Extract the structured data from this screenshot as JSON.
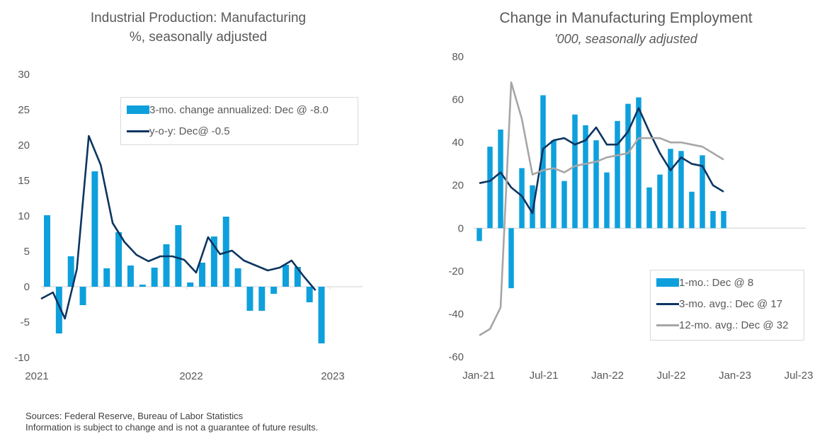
{
  "colors": {
    "bar": "#0ea0dc",
    "dark_line": "#0c3560",
    "gray_line": "#a6a6a6",
    "zero_line": "#d9d9d9"
  },
  "footer": {
    "sources": "Sources: Federal Reserve, Bureau of Labor Statistics",
    "disclaimer": "Information is subject to change and is not a guarantee of future results."
  },
  "chart_data": [
    {
      "type": "bar",
      "title": "Industrial Production: Manufacturing",
      "subtitle": "%, seasonally adjusted",
      "xlabel": "",
      "ylabel": "",
      "ylim": [
        -10,
        30
      ],
      "yticks": [
        "30",
        "25",
        "20",
        "15",
        "10",
        "5",
        "0",
        "-5",
        "-10"
      ],
      "ytick_values": [
        30,
        25,
        20,
        15,
        10,
        5,
        0,
        -5,
        -10
      ],
      "xticks": [
        "2021",
        "2022",
        "2023"
      ],
      "grid": false,
      "legend_position": "top-right",
      "categories": [
        "Jan-21",
        "Feb-21",
        "Mar-21",
        "Apr-21",
        "May-21",
        "Jun-21",
        "Jul-21",
        "Aug-21",
        "Sep-21",
        "Oct-21",
        "Nov-21",
        "Dec-21",
        "Jan-22",
        "Feb-22",
        "Mar-22",
        "Apr-22",
        "May-22",
        "Jun-22",
        "Jul-22",
        "Aug-22",
        "Sep-22",
        "Oct-22",
        "Nov-22",
        "Dec-22"
      ],
      "series": [
        {
          "name": "3-mo. change annualized: Dec @ -8.0",
          "kind": "bar",
          "values": [
            10.1,
            -6.6,
            4.3,
            -2.6,
            16.3,
            2.6,
            7.7,
            3.0,
            0.3,
            2.7,
            6.0,
            8.7,
            0.6,
            3.4,
            7.1,
            9.9,
            2.6,
            -3.4,
            -3.4,
            -1.0,
            3.1,
            2.8,
            -2.2,
            -8.0
          ]
        },
        {
          "name": "y-o-y: Dec@ -0.5",
          "kind": "line",
          "lead_value": -1.7,
          "values": [
            -0.8,
            -4.5,
            2.5,
            21.3,
            17.2,
            9.0,
            6.3,
            4.5,
            3.6,
            4.3,
            4.3,
            3.8,
            2.0,
            7.0,
            4.6,
            5.1,
            3.7,
            3.0,
            2.3,
            2.7,
            3.7,
            1.5,
            -0.5,
            -0.5
          ]
        }
      ]
    },
    {
      "type": "bar",
      "title": "Change in Manufacturing Employment",
      "subtitle": "'000, seasonally adjusted",
      "xlabel": "",
      "ylabel": "",
      "ylim": [
        -60,
        80
      ],
      "yticks": [
        "80",
        "60",
        "40",
        "20",
        "0",
        "-20",
        "-40",
        "-60"
      ],
      "ytick_values": [
        80,
        60,
        40,
        20,
        0,
        -20,
        -40,
        -60
      ],
      "xticks": [
        "Jan-21",
        "Jul-21",
        "Jan-22",
        "Jul-22",
        "Jan-23",
        "Jul-23"
      ],
      "grid": false,
      "legend_position": "bottom-right",
      "categories": [
        "Jan-21",
        "Feb-21",
        "Mar-21",
        "Apr-21",
        "May-21",
        "Jun-21",
        "Jul-21",
        "Aug-21",
        "Sep-21",
        "Oct-21",
        "Nov-21",
        "Dec-21",
        "Jan-22",
        "Feb-22",
        "Mar-22",
        "Apr-22",
        "May-22",
        "Jun-22",
        "Jul-22",
        "Aug-22",
        "Sep-22",
        "Oct-22",
        "Nov-22",
        "Dec-22"
      ],
      "series": [
        {
          "name": "1-mo.: Dec @ 8",
          "kind": "bar",
          "values": [
            -6,
            38,
            46,
            -28,
            28,
            20,
            62,
            41,
            22,
            53,
            48,
            41,
            26,
            50,
            58,
            61,
            19,
            25,
            37,
            36,
            17,
            34,
            8,
            8
          ]
        },
        {
          "name": "3-mo. avg.: Dec @ 17",
          "kind": "line",
          "color_key": "dark_line",
          "values": [
            21,
            22,
            26,
            19,
            15,
            7,
            37,
            41,
            42,
            39,
            41,
            47,
            39,
            39,
            45,
            56,
            45,
            35,
            27,
            33,
            30,
            29,
            20,
            17
          ]
        },
        {
          "name": "12-mo. avg.: Dec @ 32",
          "kind": "line",
          "color_key": "gray_line",
          "values": [
            -50,
            -47,
            -37,
            68,
            51,
            25,
            27,
            28,
            26,
            29,
            30,
            31,
            33,
            34,
            35,
            42,
            42,
            42,
            40,
            40,
            39,
            38,
            35,
            32
          ]
        }
      ]
    }
  ]
}
